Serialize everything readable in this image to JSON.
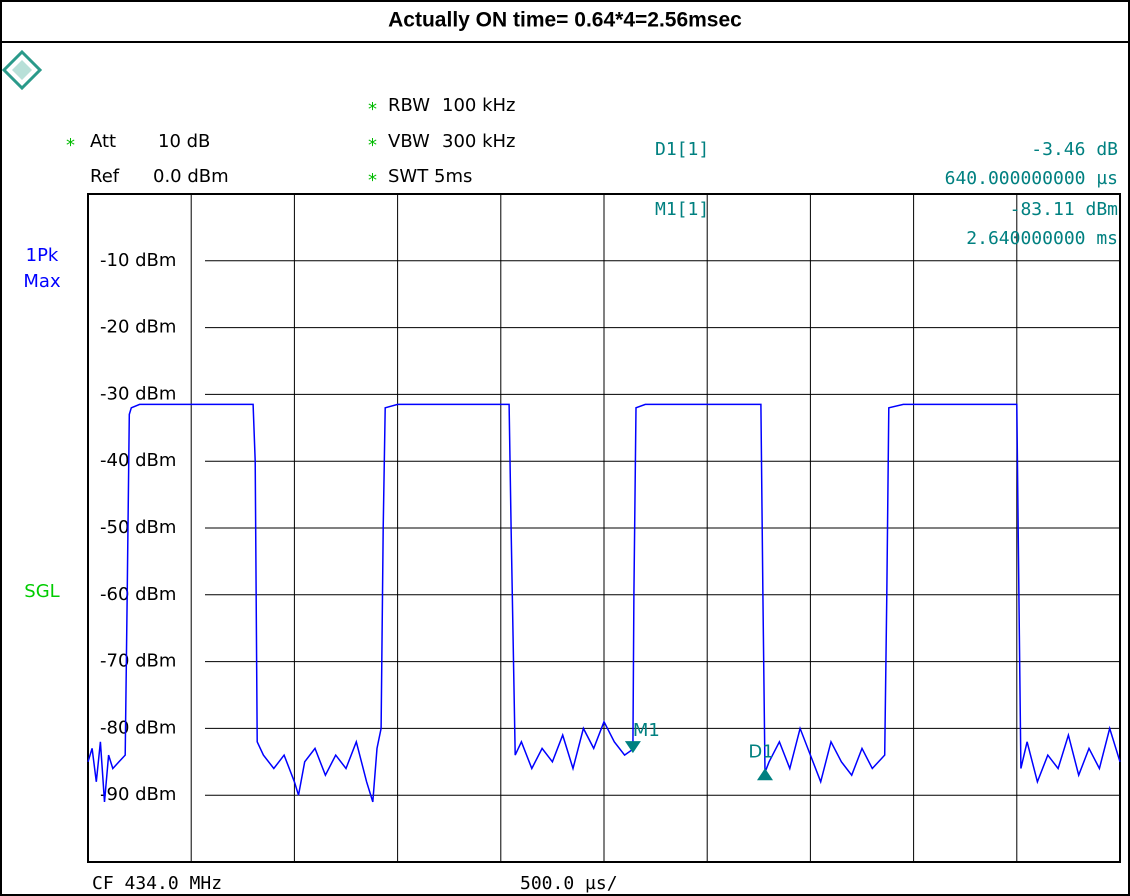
{
  "header": {
    "title": "Actually ON time= 0.64*4=2.56msec"
  },
  "settings": [
    {
      "mark": "*",
      "name": "Att",
      "value": "10 dB"
    },
    {
      "name": "Ref",
      "value": "0.0 dBm"
    },
    {
      "mark": "*",
      "name": "RBW",
      "value": "100 kHz"
    },
    {
      "mark": "*",
      "name": "VBW",
      "value": "300 kHz"
    },
    {
      "mark": "*",
      "name": "SWT",
      "value": "5ms"
    }
  ],
  "side_labels": [
    {
      "text": "1Pk",
      "color": "#0000ff"
    },
    {
      "text": "Max",
      "color": "#0000ff"
    },
    {
      "text": "SGL",
      "color": "#00cc00"
    }
  ],
  "readouts": [
    {
      "name": "D1[1]",
      "value": "-3.46 dB",
      "position": "640.000000000 µs"
    },
    {
      "name": "M1[1]",
      "value": "-83.11 dBm",
      "position": "2.640000000 ms"
    }
  ],
  "footer": {
    "center": "CF 434.0 MHz",
    "span": "500.0 µs/"
  },
  "chart_data": {
    "type": "line",
    "grid": true,
    "xlim": [
      0,
      5
    ],
    "xticks": [
      0,
      0.5,
      1,
      1.5,
      2,
      2.5,
      3,
      3.5,
      4,
      4.5,
      5
    ],
    "ylim": [
      -100,
      0
    ],
    "yticks": [
      {
        "value": -10,
        "label": "-10 dBm"
      },
      {
        "value": -20,
        "label": "-20 dBm"
      },
      {
        "value": -30,
        "label": "-30 dBm"
      },
      {
        "value": -40,
        "label": "-40 dBm"
      },
      {
        "value": -50,
        "label": "-50 dBm"
      },
      {
        "value": -60,
        "label": "-60 dBm"
      },
      {
        "value": -70,
        "label": "-70 dBm"
      },
      {
        "value": -80,
        "label": "-80 dBm"
      },
      {
        "value": -90,
        "label": "-90 dBm"
      }
    ],
    "x": [
      0,
      0.02,
      0.04,
      0.06,
      0.08,
      0.1,
      0.12,
      0.15,
      0.18,
      0.19,
      0.2,
      0.21,
      0.25,
      0.5,
      0.8,
      0.81,
      0.82,
      0.85,
      0.9,
      0.95,
      1.0,
      1.02,
      1.05,
      1.1,
      1.15,
      1.2,
      1.25,
      1.3,
      1.35,
      1.38,
      1.4,
      1.42,
      1.43,
      1.44,
      1.5,
      2.04,
      2.05,
      2.07,
      2.1,
      2.15,
      2.2,
      2.25,
      2.3,
      2.35,
      2.4,
      2.45,
      2.5,
      2.55,
      2.6,
      2.64,
      2.645,
      2.655,
      2.7,
      3.26,
      3.27,
      3.28,
      3.3,
      3.35,
      3.4,
      3.45,
      3.5,
      3.55,
      3.6,
      3.65,
      3.7,
      3.75,
      3.8,
      3.86,
      3.87,
      3.88,
      3.95,
      4.5,
      4.51,
      4.52,
      4.55,
      4.6,
      4.65,
      4.7,
      4.75,
      4.8,
      4.85,
      4.9,
      4.95,
      5.0
    ],
    "series": [
      {
        "color": "#0000ff",
        "values": [
          -85,
          -83,
          -88,
          -82,
          -91,
          -84,
          -86,
          -85,
          -84,
          -60,
          -33,
          -32,
          -31.5,
          -31.5,
          -31.5,
          -40,
          -82,
          -84,
          -86,
          -84,
          -88,
          -90,
          -85,
          -83,
          -87,
          -84,
          -86,
          -82,
          -88,
          -91,
          -83,
          -80,
          -50,
          -32,
          -31.5,
          -31.5,
          -50,
          -84,
          -82,
          -86,
          -83,
          -85,
          -81,
          -86,
          -80,
          -83,
          -79,
          -82,
          -84,
          -83.11,
          -60,
          -32,
          -31.5,
          -31.5,
          -60,
          -86.57,
          -85,
          -82,
          -86,
          -80,
          -84,
          -88,
          -82,
          -85,
          -87,
          -83,
          -86,
          -84,
          -60,
          -32,
          -31.5,
          -31.5,
          -60,
          -86,
          -82,
          -88,
          -84,
          -86,
          -81,
          -87,
          -83,
          -86,
          -80,
          -85
        ]
      }
    ],
    "markers": [
      {
        "label": "M1",
        "x": 2.64,
        "y": -83.11,
        "direction": "down"
      },
      {
        "label": "D1",
        "x": 3.28,
        "y": -86.57,
        "direction": "up"
      }
    ]
  }
}
